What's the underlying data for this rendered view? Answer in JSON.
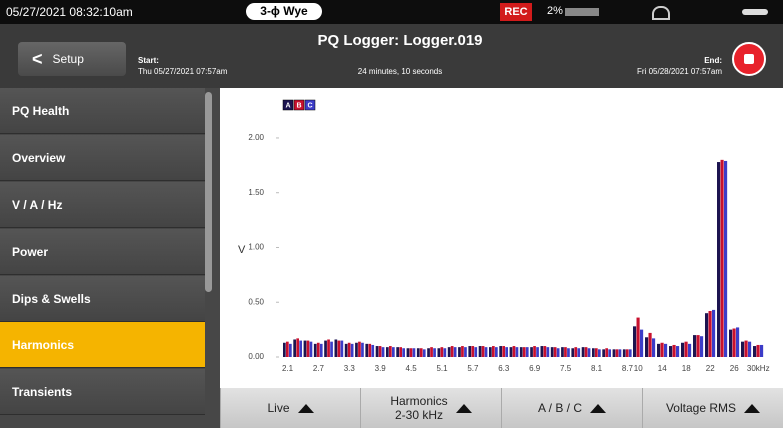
{
  "status": {
    "datetime": "05/27/2021 08:32:10am",
    "wiring": "3-ϕ Wye",
    "rec": "REC",
    "memory": "2%"
  },
  "header": {
    "back": "Setup",
    "start_label": "Start:",
    "start": "Thu 05/27/2021 07:57am",
    "title": "PQ Logger: Logger.019",
    "duration": "24 minutes, 10 seconds",
    "end_label": "End:",
    "end": "Fri 05/28/2021 07:57am"
  },
  "menu": [
    "PQ Health",
    "Overview",
    "V / A / Hz",
    "Power",
    "Dips & Swells",
    "Harmonics",
    "Transients"
  ],
  "buttons": [
    "Live",
    "Harmonics\n2-30 kHz",
    "A / B / C",
    "Voltage RMS"
  ],
  "chart_data": {
    "type": "bar",
    "y_label": "V",
    "categories": [
      "2.1",
      null,
      null,
      "2.7",
      null,
      null,
      "3.3",
      null,
      null,
      "3.9",
      null,
      null,
      "4.5",
      null,
      null,
      "5.1",
      null,
      null,
      "5.7",
      null,
      null,
      "6.3",
      null,
      null,
      "6.9",
      null,
      null,
      "7.5",
      null,
      null,
      "8.1",
      null,
      null,
      "8.7",
      "10",
      null,
      "14",
      null,
      "18",
      null,
      "22",
      null,
      "26",
      null,
      "30kHz"
    ],
    "series": [
      {
        "name": "A",
        "color": "#1c1450",
        "values": [
          0.13,
          0.16,
          0.15,
          0.12,
          0.15,
          0.16,
          0.12,
          0.13,
          0.12,
          0.1,
          0.09,
          0.09,
          0.08,
          0.08,
          0.08,
          0.08,
          0.09,
          0.09,
          0.1,
          0.1,
          0.09,
          0.1,
          0.09,
          0.09,
          0.09,
          0.1,
          0.09,
          0.09,
          0.08,
          0.09,
          0.08,
          0.07,
          0.07,
          0.07,
          0.28,
          0.18,
          0.12,
          0.1,
          0.13,
          0.2,
          0.4,
          1.78,
          0.25,
          0.14,
          0.1
        ]
      },
      {
        "name": "B",
        "color": "#c8102e",
        "values": [
          0.14,
          0.17,
          0.15,
          0.13,
          0.16,
          0.15,
          0.13,
          0.14,
          0.12,
          0.1,
          0.1,
          0.09,
          0.08,
          0.08,
          0.09,
          0.09,
          0.1,
          0.1,
          0.1,
          0.1,
          0.1,
          0.1,
          0.1,
          0.09,
          0.1,
          0.1,
          0.09,
          0.09,
          0.09,
          0.09,
          0.08,
          0.08,
          0.07,
          0.07,
          0.36,
          0.22,
          0.13,
          0.11,
          0.14,
          0.2,
          0.42,
          1.8,
          0.26,
          0.15,
          0.11
        ]
      },
      {
        "name": "C",
        "color": "#3c3cc8",
        "values": [
          0.12,
          0.15,
          0.14,
          0.12,
          0.14,
          0.15,
          0.12,
          0.13,
          0.11,
          0.09,
          0.09,
          0.08,
          0.08,
          0.07,
          0.08,
          0.08,
          0.09,
          0.09,
          0.09,
          0.09,
          0.09,
          0.09,
          0.09,
          0.09,
          0.09,
          0.09,
          0.08,
          0.08,
          0.08,
          0.08,
          0.07,
          0.07,
          0.07,
          0.07,
          0.25,
          0.17,
          0.12,
          0.1,
          0.12,
          0.19,
          0.43,
          1.79,
          0.27,
          0.14,
          0.11
        ]
      }
    ],
    "ylim": [
      0,
      2.1
    ],
    "yticks": [
      {
        "value": 0,
        "label": "0.00"
      },
      {
        "value": 0.5,
        "label": "0.50"
      },
      {
        "value": 1,
        "label": "1.00"
      },
      {
        "value": 1.5,
        "label": "1.50"
      },
      {
        "value": 2,
        "label": "2.00"
      }
    ]
  }
}
